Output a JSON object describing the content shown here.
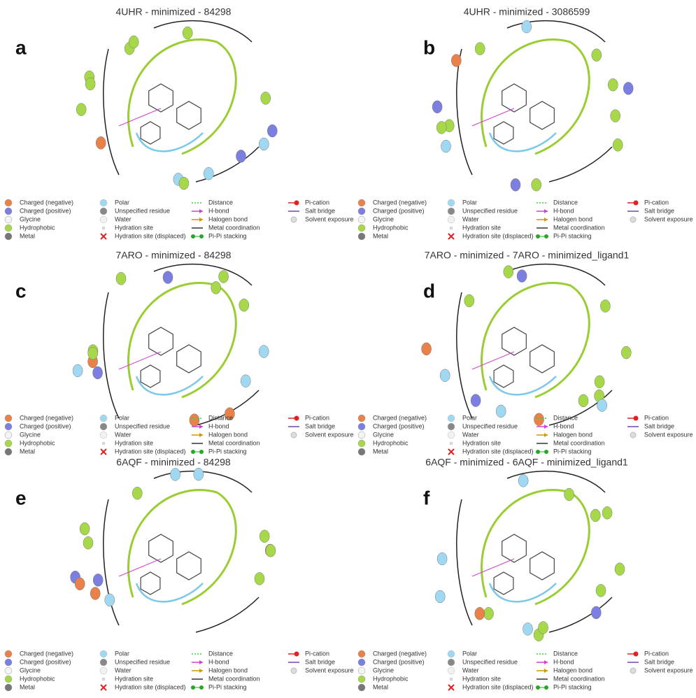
{
  "panels": [
    {
      "letter": "a",
      "title": "4UHR - minimized - 84298"
    },
    {
      "letter": "b",
      "title": "4UHR - minimized - 3086599"
    },
    {
      "letter": "c",
      "title": "7ARO - minimized - 84298"
    },
    {
      "letter": "d",
      "title": "7ARO - minimized - 7ARO - minimized_ligand1"
    },
    {
      "letter": "e",
      "title": "6AQF - minimized - 84298"
    },
    {
      "letter": "f",
      "title": "6AQF - minimized - 6AQF - minimized_ligand1"
    }
  ],
  "legend": [
    [
      "Charged (negative)",
      "Charged (positive)",
      "Glycine",
      "Hydrophobic",
      "Metal"
    ],
    [
      "Polar",
      "Unspecified residue",
      "Water",
      "Hydration site",
      "Hydration site (displaced)"
    ],
    [
      "Distance",
      "H-bond",
      "Halogen bond",
      "Metal coordination",
      "Pi-Pi stacking"
    ],
    [
      "Pi-cation",
      "Salt bridge",
      "Solvent exposure"
    ]
  ]
}
